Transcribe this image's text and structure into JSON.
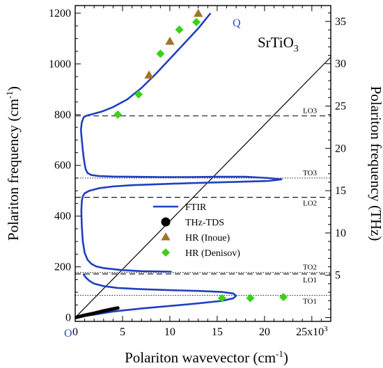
{
  "chart_data": {
    "type": "line",
    "compound": "SrTiO",
    "compound_subscript": "3",
    "xlabel": "Polariton wavevector (cm",
    "xlabel_sup": "-1",
    "xlabel_end": ")",
    "ylabel_left": "Polariton frequency (cm",
    "ylabel_left_sup": "-1",
    "ylabel_left_end": ")",
    "ylabel_right": "Polariton frequency (THz)",
    "x_ticks": [
      "0",
      "5",
      "10",
      "15",
      "20",
      "25x10"
    ],
    "x_exponent": "3",
    "x_tick_values": [
      0,
      5000,
      10000,
      15000,
      20000,
      25000
    ],
    "y_left_ticks": [
      "0",
      "200",
      "400",
      "600",
      "800",
      "1000",
      "1200"
    ],
    "y_left_tick_values": [
      0,
      200,
      400,
      600,
      800,
      1000,
      1200
    ],
    "y_right_ticks": [
      "5",
      "10",
      "15",
      "20",
      "25",
      "30",
      "35"
    ],
    "y_right_tick_values": [
      5,
      10,
      15,
      20,
      25,
      30,
      35
    ],
    "xlim": [
      0,
      27000
    ],
    "ylim": [
      -15,
      1230
    ],
    "origin_label": "O",
    "light_line_label": "Q",
    "light_line": {
      "x": [
        0,
        30500
      ],
      "y": [
        0,
        1160
      ]
    },
    "reference_lines": [
      {
        "label": "LO3",
        "y": 795,
        "style": "dashed"
      },
      {
        "label": "TO3",
        "y": 550,
        "style": "dotted"
      },
      {
        "label": "LO2",
        "y": 474,
        "style": "dashed"
      },
      {
        "label": "TO2",
        "y": 178,
        "style": "dotted"
      },
      {
        "label": "LO1",
        "y": 172,
        "style": "dashed"
      },
      {
        "label": "TO1",
        "y": 88,
        "style": "dotted"
      }
    ],
    "series": [
      {
        "name": "FTIR",
        "kind": "line",
        "color": "#1f3fbf",
        "segments": [
          {
            "x": [
              14300,
              13000,
              11500,
              10000,
              8500,
              7000,
              5500,
              4000,
              2800,
              1800,
              1200,
              900,
              700,
              600,
              700,
              800,
              900,
              1000,
              1100,
              1300,
              1700,
              2500,
              4000,
              6000,
              9000,
              12000,
              15000,
              18000,
              20500,
              21800,
              20500,
              18000,
              15000,
              12000,
              9000,
              6000,
              4000,
              2500,
              1500,
              1000,
              800,
              700,
              650,
              700,
              800,
              1000,
              1300,
              1700,
              2200,
              3000,
              5000,
              7000,
              10000,
              10200
            ],
            "y": [
              1200,
              1140,
              1080,
              1020,
              960,
              905,
              860,
              830,
              812,
              802,
              796,
              790,
              770,
              740,
              700,
              660,
              630,
              605,
              585,
              570,
              562,
              558,
              556,
              555,
              554,
              554,
              555,
              555,
              550,
              545,
              539,
              536,
              533,
              530,
              526,
              522,
              517,
              510,
              500,
              490,
              478,
              460,
              420,
              360,
              300,
              255,
              228,
              212,
              202,
              195,
              187,
              183,
              181,
              180
            ]
          },
          {
            "x": [
              0,
              2000,
              4000,
              7000,
              10000,
              13000,
              15500,
              16700,
              17000,
              16700,
              15500,
              13000,
              10000,
              7000,
              4500,
              3000,
              2000,
              1500,
              1200,
              1000,
              900,
              850
            ],
            "y": [
              0,
              12,
              24,
              36,
              46,
              56,
              66,
              76,
              86,
              95,
              101,
              105,
              108,
              112,
              117,
              124,
              134,
              145,
              155,
              164,
              170,
              173
            ]
          }
        ]
      },
      {
        "name": "THz-TDS",
        "kind": "line-thick",
        "color": "#000000",
        "x": [
          0,
          1000,
          2000,
          3000,
          4000,
          4500
        ],
        "y": [
          0,
          9,
          17,
          26,
          34,
          38
        ]
      },
      {
        "name": "HR (Inoue)",
        "kind": "triangle",
        "color": "#a07528",
        "x": [
          7800,
          10000,
          13000
        ],
        "y": [
          955,
          1088,
          1198
        ]
      },
      {
        "name": "HR (Denisov)",
        "kind": "diamond",
        "color": "#3ad11a",
        "x": [
          4500,
          6700,
          9000,
          11000,
          12800,
          15500,
          18500,
          22000
        ],
        "y": [
          800,
          880,
          1040,
          1135,
          1165,
          77,
          77,
          81
        ]
      }
    ],
    "legend": [
      "FTIR",
      "THz-TDS",
      "HR (Inoue)",
      "HR (Denisov)"
    ],
    "grid": false
  }
}
